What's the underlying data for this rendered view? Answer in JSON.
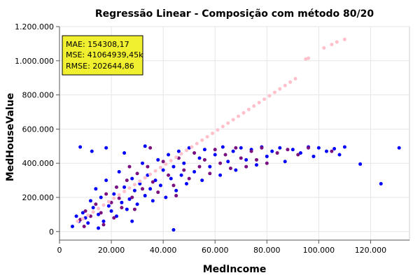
{
  "chart_data": {
    "type": "scatter",
    "title": "Regressão Linear - Composição com método 80/20",
    "xlabel": "MedIncome",
    "ylabel": "MedHouseValue",
    "xlim": [
      0,
      135000
    ],
    "ylim": [
      -50000,
      1200000
    ],
    "x_ticks": [
      0,
      20000,
      40000,
      60000,
      80000,
      100000,
      120000
    ],
    "x_tick_labels": [
      "0",
      "20.000",
      "40.000",
      "60.000",
      "80.000",
      "100.000",
      "120.000"
    ],
    "y_ticks": [
      0,
      200000,
      400000,
      600000,
      800000,
      1000000,
      1200000
    ],
    "y_tick_labels": [
      "0",
      "200.000",
      "400.000",
      "600.000",
      "800.000",
      "1.000.000",
      "1.200.000"
    ],
    "grid": true,
    "metrics_box": {
      "lines": [
        "MAE: 154308,17",
        "MSE: 41064939,45k",
        "RMSE: 202644,86"
      ],
      "background": "#f0f030"
    },
    "series": [
      {
        "color": "#0000ff",
        "points": [
          [
            5000,
            30000
          ],
          [
            7500,
            60000
          ],
          [
            9000,
            110000
          ],
          [
            10000,
            80000
          ],
          [
            11000,
            50000
          ],
          [
            12000,
            180000
          ],
          [
            13000,
            140000
          ],
          [
            14000,
            250000
          ],
          [
            15000,
            100000
          ],
          [
            16000,
            200000
          ],
          [
            17000,
            60000
          ],
          [
            18000,
            300000
          ],
          [
            19000,
            150000
          ],
          [
            20000,
            120000
          ],
          [
            21000,
            220000
          ],
          [
            22000,
            90000
          ],
          [
            23000,
            350000
          ],
          [
            24000,
            170000
          ],
          [
            25000,
            260000
          ],
          [
            26000,
            130000
          ],
          [
            27000,
            190000
          ],
          [
            28000,
            310000
          ],
          [
            29000,
            240000
          ],
          [
            30000,
            160000
          ],
          [
            31000,
            280000
          ],
          [
            32000,
            400000
          ],
          [
            33000,
            210000
          ],
          [
            34000,
            330000
          ],
          [
            35000,
            250000
          ],
          [
            36000,
            180000
          ],
          [
            37000,
            300000
          ],
          [
            38000,
            420000
          ],
          [
            39000,
            270000
          ],
          [
            40000,
            360000
          ],
          [
            41000,
            200000
          ],
          [
            42000,
            450000
          ],
          [
            43000,
            310000
          ],
          [
            44000,
            380000
          ],
          [
            45000,
            240000
          ],
          [
            46000,
            470000
          ],
          [
            47000,
            330000
          ],
          [
            48000,
            400000
          ],
          [
            49000,
            280000
          ],
          [
            50000,
            490000
          ],
          [
            52000,
            350000
          ],
          [
            54000,
            430000
          ],
          [
            55000,
            300000
          ],
          [
            56000,
            480000
          ],
          [
            58000,
            380000
          ],
          [
            60000,
            450000
          ],
          [
            62000,
            330000
          ],
          [
            63000,
            495000
          ],
          [
            65000,
            410000
          ],
          [
            67000,
            470000
          ],
          [
            68000,
            360000
          ],
          [
            70000,
            490000
          ],
          [
            72000,
            420000
          ],
          [
            74000,
            480000
          ],
          [
            76000,
            390000
          ],
          [
            78000,
            495000
          ],
          [
            80000,
            440000
          ],
          [
            82000,
            470000
          ],
          [
            85000,
            490000
          ],
          [
            87000,
            410000
          ],
          [
            90000,
            480000
          ],
          [
            93000,
            460000
          ],
          [
            96000,
            495000
          ],
          [
            98000,
            440000
          ],
          [
            100000,
            490000
          ],
          [
            103000,
            470000
          ],
          [
            106000,
            485000
          ],
          [
            108000,
            450000
          ],
          [
            110000,
            495000
          ],
          [
            116000,
            395000
          ],
          [
            124000,
            280000
          ],
          [
            131000,
            490000
          ],
          [
            8000,
            495000
          ],
          [
            12500,
            470000
          ],
          [
            18000,
            490000
          ],
          [
            25000,
            460000
          ],
          [
            33000,
            500000
          ],
          [
            44000,
            10000
          ],
          [
            15000,
            20000
          ],
          [
            28000,
            60000
          ],
          [
            6500,
            90000
          ]
        ]
      },
      {
        "color": "#7a1080",
        "points": [
          [
            8000,
            70000
          ],
          [
            10000,
            120000
          ],
          [
            12000,
            90000
          ],
          [
            14000,
            160000
          ],
          [
            16000,
            110000
          ],
          [
            18000,
            220000
          ],
          [
            20000,
            170000
          ],
          [
            22000,
            260000
          ],
          [
            24000,
            140000
          ],
          [
            26000,
            300000
          ],
          [
            28000,
            200000
          ],
          [
            30000,
            340000
          ],
          [
            32000,
            250000
          ],
          [
            34000,
            380000
          ],
          [
            36000,
            290000
          ],
          [
            38000,
            230000
          ],
          [
            40000,
            410000
          ],
          [
            42000,
            330000
          ],
          [
            44000,
            270000
          ],
          [
            46000,
            430000
          ],
          [
            48000,
            360000
          ],
          [
            50000,
            310000
          ],
          [
            52000,
            460000
          ],
          [
            54000,
            380000
          ],
          [
            56000,
            420000
          ],
          [
            58000,
            340000
          ],
          [
            60000,
            480000
          ],
          [
            62000,
            400000
          ],
          [
            64000,
            450000
          ],
          [
            66000,
            370000
          ],
          [
            68000,
            490000
          ],
          [
            70000,
            430000
          ],
          [
            72000,
            380000
          ],
          [
            74000,
            470000
          ],
          [
            76000,
            420000
          ],
          [
            78000,
            490000
          ],
          [
            80000,
            400000
          ],
          [
            84000,
            460000
          ],
          [
            88000,
            480000
          ],
          [
            92000,
            450000
          ],
          [
            96000,
            490000
          ],
          [
            105000,
            470000
          ],
          [
            17000,
            40000
          ],
          [
            21000,
            80000
          ],
          [
            29000,
            130000
          ],
          [
            35000,
            490000
          ],
          [
            9500,
            30000
          ],
          [
            23000,
            195000
          ],
          [
            45000,
            210000
          ],
          [
            27000,
            380000
          ]
        ]
      },
      {
        "color": "#ffc0cb",
        "points": [
          [
            7000,
            60000
          ],
          [
            9000,
            75000
          ],
          [
            11000,
            95000
          ],
          [
            13000,
            115000
          ],
          [
            15000,
            135000
          ],
          [
            17000,
            155000
          ],
          [
            19000,
            175000
          ],
          [
            21000,
            195000
          ],
          [
            23000,
            215000
          ],
          [
            25000,
            235000
          ],
          [
            27000,
            255000
          ],
          [
            29000,
            275000
          ],
          [
            31000,
            295000
          ],
          [
            33000,
            315000
          ],
          [
            35000,
            335000
          ],
          [
            37000,
            355000
          ],
          [
            39000,
            375000
          ],
          [
            41000,
            395000
          ],
          [
            43000,
            415000
          ],
          [
            45000,
            435000
          ],
          [
            47000,
            455000
          ],
          [
            49000,
            475000
          ],
          [
            51000,
            495000
          ],
          [
            53000,
            515000
          ],
          [
            55000,
            535000
          ],
          [
            57000,
            555000
          ],
          [
            59000,
            575000
          ],
          [
            61000,
            595000
          ],
          [
            63000,
            615000
          ],
          [
            65000,
            635000
          ],
          [
            67000,
            655000
          ],
          [
            69000,
            675000
          ],
          [
            71000,
            695000
          ],
          [
            73000,
            715000
          ],
          [
            75000,
            735000
          ],
          [
            77000,
            755000
          ],
          [
            79000,
            775000
          ],
          [
            81000,
            795000
          ],
          [
            83000,
            815000
          ],
          [
            85000,
            835000
          ],
          [
            87000,
            855000
          ],
          [
            89000,
            875000
          ],
          [
            91000,
            895000
          ],
          [
            95000,
            1010000
          ],
          [
            96000,
            1015000
          ],
          [
            102000,
            1075000
          ],
          [
            105000,
            1095000
          ],
          [
            107000,
            1110000
          ],
          [
            110000,
            1125000
          ]
        ]
      }
    ]
  }
}
